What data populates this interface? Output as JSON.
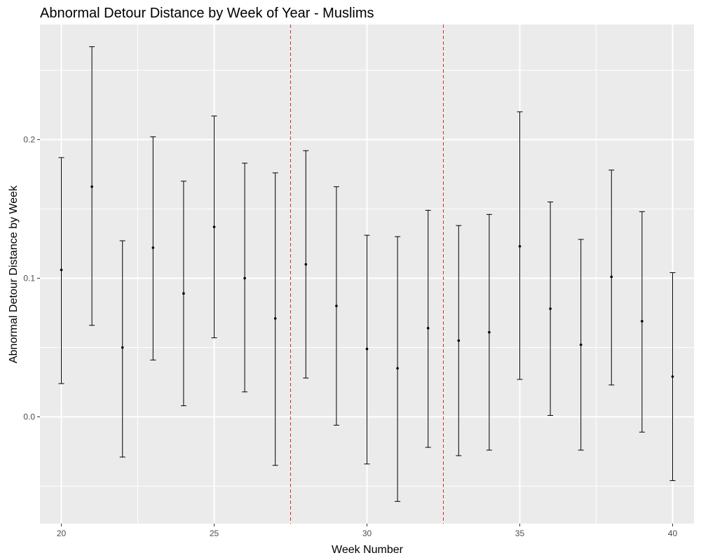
{
  "chart_data": {
    "type": "errorbar",
    "title": "Abnormal Detour Distance by Week of Year - Muslims",
    "xlabel": "Week Number",
    "ylabel": "Abnormal Detour Distance by Week",
    "xlim": [
      19.3,
      40.7
    ],
    "ylim": [
      -0.077,
      0.283
    ],
    "x_ticks": [
      20,
      25,
      30,
      35,
      40
    ],
    "x_tick_labels": [
      "20",
      "25",
      "30",
      "35",
      "40"
    ],
    "y_ticks": [
      0.0,
      0.1,
      0.2
    ],
    "y_tick_labels": [
      "0.0",
      "0.1",
      "0.2"
    ],
    "grid": true,
    "reference_lines": [
      {
        "x": 27.5,
        "color": "#cc3333",
        "style": "dashed"
      },
      {
        "x": 32.5,
        "color": "#cc3333",
        "style": "dashed"
      }
    ],
    "colors": {
      "panel": "#ebebeb",
      "grid": "#ffffff",
      "marks": "#000000"
    },
    "points": [
      {
        "week": 20,
        "estimate": 0.106,
        "lower": 0.024,
        "upper": 0.187
      },
      {
        "week": 21,
        "estimate": 0.166,
        "lower": 0.066,
        "upper": 0.267
      },
      {
        "week": 22,
        "estimate": 0.05,
        "lower": -0.029,
        "upper": 0.127
      },
      {
        "week": 23,
        "estimate": 0.122,
        "lower": 0.041,
        "upper": 0.202
      },
      {
        "week": 24,
        "estimate": 0.089,
        "lower": 0.008,
        "upper": 0.17
      },
      {
        "week": 25,
        "estimate": 0.137,
        "lower": 0.057,
        "upper": 0.217
      },
      {
        "week": 26,
        "estimate": 0.1,
        "lower": 0.018,
        "upper": 0.183
      },
      {
        "week": 27,
        "estimate": 0.071,
        "lower": -0.035,
        "upper": 0.176
      },
      {
        "week": 28,
        "estimate": 0.11,
        "lower": 0.028,
        "upper": 0.192
      },
      {
        "week": 29,
        "estimate": 0.08,
        "lower": -0.006,
        "upper": 0.166
      },
      {
        "week": 30,
        "estimate": 0.049,
        "lower": -0.034,
        "upper": 0.131
      },
      {
        "week": 31,
        "estimate": 0.035,
        "lower": -0.061,
        "upper": 0.13
      },
      {
        "week": 32,
        "estimate": 0.064,
        "lower": -0.022,
        "upper": 0.149
      },
      {
        "week": 33,
        "estimate": 0.055,
        "lower": -0.028,
        "upper": 0.138
      },
      {
        "week": 34,
        "estimate": 0.061,
        "lower": -0.024,
        "upper": 0.146
      },
      {
        "week": 35,
        "estimate": 0.123,
        "lower": 0.027,
        "upper": 0.22
      },
      {
        "week": 36,
        "estimate": 0.078,
        "lower": 0.001,
        "upper": 0.155
      },
      {
        "week": 37,
        "estimate": 0.052,
        "lower": -0.024,
        "upper": 0.128
      },
      {
        "week": 38,
        "estimate": 0.101,
        "lower": 0.023,
        "upper": 0.178
      },
      {
        "week": 39,
        "estimate": 0.069,
        "lower": -0.011,
        "upper": 0.148
      },
      {
        "week": 40,
        "estimate": 0.029,
        "lower": -0.046,
        "upper": 0.104
      }
    ]
  }
}
